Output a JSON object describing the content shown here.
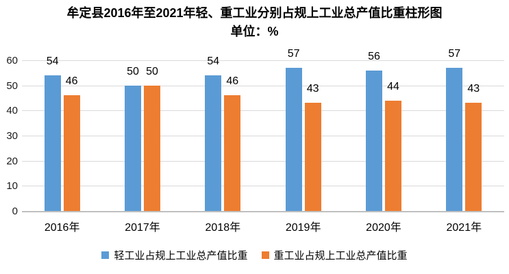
{
  "title": "牟定县2016年至2021年轻、重工业分别占规上工业总产值比重柱形图",
  "subtitle": "单位：%",
  "colors": {
    "light_industry_blue": "#5B9BD5",
    "heavy_industry_orange": "#ED7D31",
    "gridline": "#D9D9D9",
    "axis_line": "#BFBFBF",
    "text": "#000000",
    "background": "#FFFFFF"
  },
  "chart_data": {
    "type": "bar",
    "title": "牟定县2016年至2021年轻、重工业分别占规上工业总产值比重柱形图",
    "subtitle": "单位：%",
    "categories": [
      "2016年",
      "2017年",
      "2018年",
      "2019年",
      "2020年",
      "2021年"
    ],
    "series": [
      {
        "name": "轻工业占规上工业总产值比重",
        "color": "#5B9BD5",
        "values": [
          54,
          50,
          54,
          57,
          56,
          57
        ]
      },
      {
        "name": "重工业占规上工业总产值比重",
        "color": "#ED7D31",
        "values": [
          46,
          50,
          46,
          43,
          44,
          43
        ]
      }
    ],
    "xlabel": "",
    "ylabel": "",
    "ylim": [
      0,
      60
    ],
    "yticks": [
      0,
      10,
      20,
      30,
      40,
      50,
      60
    ],
    "grid": true,
    "data_labels": true,
    "legend_position": "bottom"
  }
}
